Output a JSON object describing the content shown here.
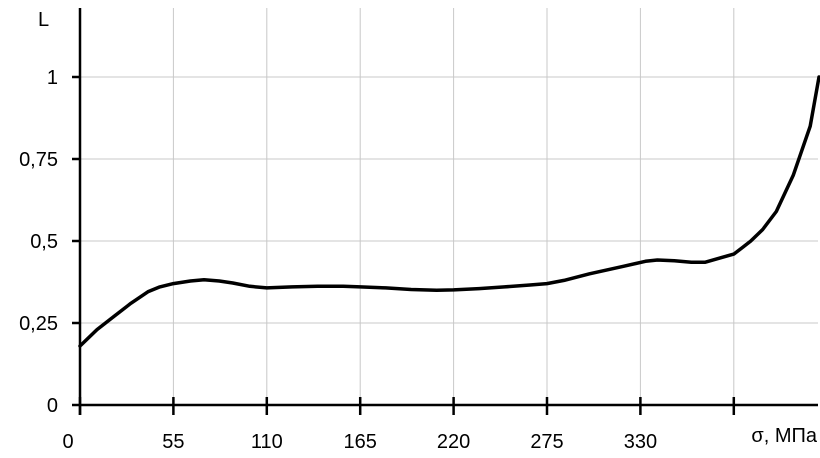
{
  "chart_data": {
    "type": "line",
    "title": "",
    "xlabel": "σ, МПа",
    "ylabel": "L",
    "xlim": [
      0,
      405
    ],
    "ylim": [
      0,
      1
    ],
    "x_ticks": [
      0,
      55,
      110,
      165,
      220,
      275,
      330
    ],
    "x_tick_labels": [
      "0",
      "55",
      "110",
      "165",
      "220",
      "275",
      "330"
    ],
    "y_ticks": [
      0,
      0.25,
      0.5,
      0.75,
      1
    ],
    "y_tick_labels": [
      "0",
      "0,25",
      "0,5",
      "0,75",
      "1"
    ],
    "grid": true,
    "series": [
      {
        "x": [
          0,
          10,
          20,
          30,
          40,
          47,
          55,
          65,
          73,
          82,
          90,
          100,
          110,
          125,
          140,
          155,
          165,
          180,
          195,
          210,
          220,
          235,
          250,
          265,
          275,
          285,
          300,
          320,
          333,
          340,
          350,
          360,
          368,
          378,
          385,
          390,
          395,
          402,
          410,
          420,
          430,
          437
        ],
        "y": [
          0.18,
          0.23,
          0.27,
          0.31,
          0.345,
          0.36,
          0.37,
          0.378,
          0.382,
          0.378,
          0.372,
          0.362,
          0.357,
          0.36,
          0.362,
          0.362,
          0.36,
          0.357,
          0.352,
          0.35,
          0.351,
          0.355,
          0.36,
          0.366,
          0.37,
          0.38,
          0.4,
          0.423,
          0.438,
          0.442,
          0.44,
          0.435,
          0.435,
          0.45,
          0.46,
          0.48,
          0.5,
          0.535,
          0.59,
          0.7,
          0.85,
          1.0
        ]
      }
    ]
  }
}
